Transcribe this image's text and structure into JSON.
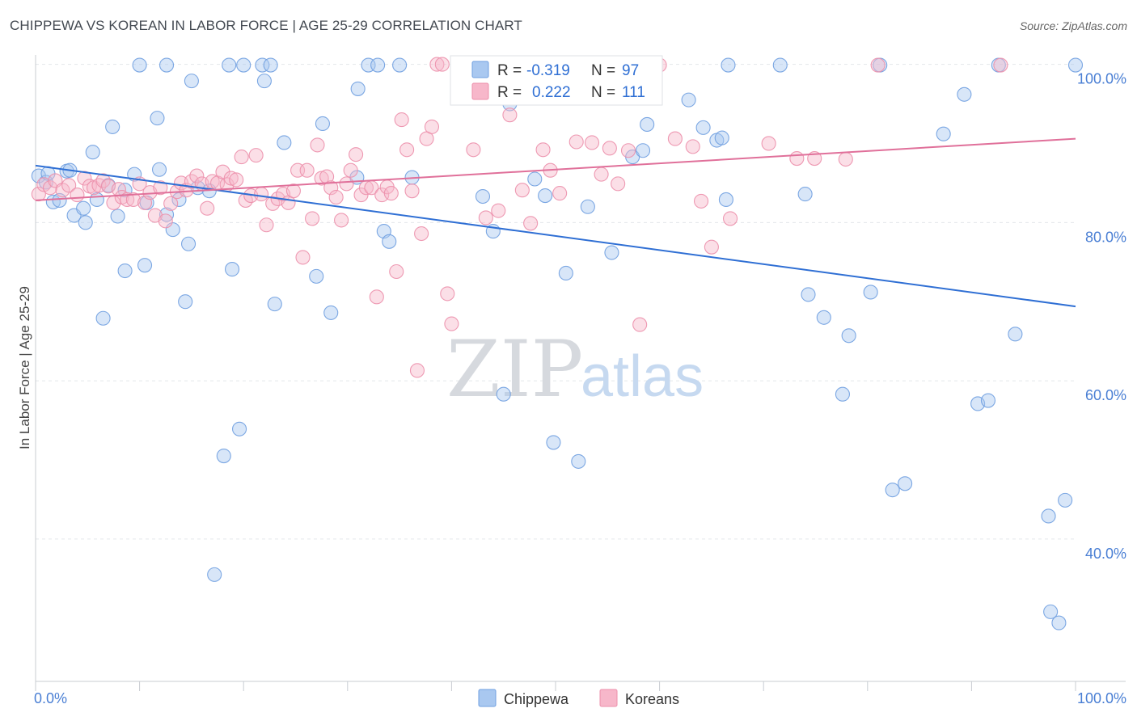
{
  "title": "CHIPPEWA VS KOREAN IN LABOR FORCE | AGE 25-29 CORRELATION CHART",
  "source": "Source: ZipAtlas.com",
  "watermark": {
    "zip": "ZIP",
    "atlas": "atlas"
  },
  "colors": {
    "chippewa_fill": "#a9c8f0",
    "chippewa_stroke": "#6f9fe0",
    "chippewa_line": "#2f6fd4",
    "korean_fill": "#f7b7ca",
    "korean_stroke": "#ec8fab",
    "korean_line": "#e0709a",
    "value_text": "#2f6fd4",
    "grid": "#e3e6ea"
  },
  "legend": {
    "r_label": "R =",
    "n_label": "N =",
    "rows": [
      {
        "r": "-0.319",
        "n": "97"
      },
      {
        "r": "0.222",
        "n": "111"
      }
    ]
  },
  "bottom_legend": [
    "Chippewa",
    "Koreans"
  ],
  "chart_data": {
    "type": "scatter",
    "xlabel": "",
    "ylabel": "In Labor Force | Age 25-29",
    "xlim": [
      0,
      100
    ],
    "ylim": [
      22,
      102
    ],
    "x_tick_labels": [
      {
        "value": 0,
        "label": "0.0%"
      },
      {
        "value": 100,
        "label": "100.0%"
      }
    ],
    "y_tick_labels": [
      {
        "value": 100,
        "label": "100.0%"
      },
      {
        "value": 80,
        "label": "80.0%"
      },
      {
        "value": 60,
        "label": "60.0%"
      },
      {
        "value": 40,
        "label": "40.0%"
      }
    ],
    "grid": true,
    "legend_position": "top-center",
    "series": [
      {
        "name": "Chippewa",
        "r": -0.319,
        "n": 97,
        "trend": {
          "x": [
            0,
            100
          ],
          "y": [
            87.2,
            69.4
          ]
        },
        "points": [
          [
            0.3,
            85.9
          ],
          [
            1.0,
            85.1
          ],
          [
            1.2,
            86.2
          ],
          [
            1.7,
            82.6
          ],
          [
            2.3,
            82.8
          ],
          [
            3.0,
            86.5
          ],
          [
            3.3,
            86.6
          ],
          [
            3.7,
            80.9
          ],
          [
            4.6,
            81.8
          ],
          [
            4.8,
            80.0
          ],
          [
            5.5,
            88.9
          ],
          [
            5.9,
            82.9
          ],
          [
            6.5,
            67.9
          ],
          [
            7.0,
            84.7
          ],
          [
            7.4,
            92.1
          ],
          [
            7.9,
            80.8
          ],
          [
            8.6,
            84.1
          ],
          [
            8.6,
            73.9
          ],
          [
            9.5,
            86.1
          ],
          [
            10.0,
            99.9
          ],
          [
            10.5,
            74.6
          ],
          [
            10.7,
            82.5
          ],
          [
            11.7,
            93.2
          ],
          [
            11.9,
            86.7
          ],
          [
            12.6,
            81.0
          ],
          [
            12.6,
            99.9
          ],
          [
            13.2,
            79.1
          ],
          [
            13.8,
            82.9
          ],
          [
            14.4,
            70.0
          ],
          [
            14.7,
            77.3
          ],
          [
            15.0,
            97.9
          ],
          [
            15.6,
            84.4
          ],
          [
            16.7,
            84.0
          ],
          [
            17.2,
            35.5
          ],
          [
            18.1,
            50.5
          ],
          [
            18.6,
            99.9
          ],
          [
            18.9,
            74.1
          ],
          [
            19.6,
            53.9
          ],
          [
            20.0,
            99.9
          ],
          [
            21.8,
            99.9
          ],
          [
            22.0,
            97.9
          ],
          [
            22.6,
            99.9
          ],
          [
            23.0,
            69.7
          ],
          [
            23.9,
            90.1
          ],
          [
            27.0,
            73.2
          ],
          [
            27.6,
            92.5
          ],
          [
            28.4,
            68.6
          ],
          [
            30.9,
            85.7
          ],
          [
            31.0,
            96.9
          ],
          [
            32.0,
            99.9
          ],
          [
            32.9,
            99.9
          ],
          [
            33.5,
            78.9
          ],
          [
            34.0,
            77.6
          ],
          [
            35.0,
            99.9
          ],
          [
            36.2,
            85.7
          ],
          [
            43.0,
            83.3
          ],
          [
            44.0,
            78.9
          ],
          [
            45.0,
            58.3
          ],
          [
            45.6,
            95.0
          ],
          [
            46.0,
            97.0
          ],
          [
            48.0,
            85.5
          ],
          [
            49.0,
            83.4
          ],
          [
            49.8,
            52.2
          ],
          [
            51.0,
            73.6
          ],
          [
            52.2,
            49.8
          ],
          [
            53.1,
            82.0
          ],
          [
            55.4,
            76.2
          ],
          [
            57.4,
            88.3
          ],
          [
            58.4,
            89.1
          ],
          [
            58.8,
            92.4
          ],
          [
            62.8,
            95.5
          ],
          [
            64.2,
            92.0
          ],
          [
            65.5,
            90.4
          ],
          [
            66.0,
            90.7
          ],
          [
            66.4,
            82.9
          ],
          [
            66.6,
            99.9
          ],
          [
            71.6,
            99.9
          ],
          [
            74.0,
            83.6
          ],
          [
            74.3,
            70.9
          ],
          [
            75.8,
            68.0
          ],
          [
            77.6,
            58.3
          ],
          [
            78.2,
            65.7
          ],
          [
            80.3,
            71.2
          ],
          [
            81.2,
            99.9
          ],
          [
            82.4,
            46.2
          ],
          [
            83.6,
            47.0
          ],
          [
            87.3,
            91.2
          ],
          [
            89.3,
            96.2
          ],
          [
            90.6,
            57.1
          ],
          [
            91.6,
            57.5
          ],
          [
            92.6,
            99.9
          ],
          [
            94.2,
            65.9
          ],
          [
            97.4,
            42.9
          ],
          [
            97.6,
            30.8
          ],
          [
            98.4,
            29.4
          ],
          [
            99.0,
            44.9
          ],
          [
            100.0,
            99.9
          ]
        ]
      },
      {
        "name": "Koreans",
        "r": 0.222,
        "n": 111,
        "trend": {
          "x": [
            0,
            100
          ],
          "y": [
            82.8,
            90.6
          ]
        },
        "points": [
          [
            0.3,
            83.6
          ],
          [
            0.8,
            84.8
          ],
          [
            1.4,
            84.4
          ],
          [
            1.9,
            85.3
          ],
          [
            2.6,
            84.1
          ],
          [
            3.2,
            84.7
          ],
          [
            4.0,
            83.5
          ],
          [
            4.7,
            85.6
          ],
          [
            5.2,
            84.6
          ],
          [
            5.6,
            84.4
          ],
          [
            6.1,
            84.7
          ],
          [
            6.5,
            85.3
          ],
          [
            7.0,
            84.6
          ],
          [
            7.5,
            82.5
          ],
          [
            8.0,
            84.2
          ],
          [
            8.3,
            83.2
          ],
          [
            8.8,
            82.9
          ],
          [
            9.4,
            82.9
          ],
          [
            10.0,
            84.9
          ],
          [
            10.5,
            82.5
          ],
          [
            11.0,
            83.8
          ],
          [
            11.5,
            80.9
          ],
          [
            12.0,
            84.4
          ],
          [
            12.5,
            80.2
          ],
          [
            13.0,
            82.4
          ],
          [
            13.6,
            83.9
          ],
          [
            14.0,
            85.0
          ],
          [
            14.5,
            84.1
          ],
          [
            15.0,
            85.2
          ],
          [
            15.5,
            85.9
          ],
          [
            16.0,
            84.9
          ],
          [
            16.5,
            81.8
          ],
          [
            17.0,
            85.2
          ],
          [
            17.5,
            85.0
          ],
          [
            18.0,
            86.4
          ],
          [
            18.4,
            84.8
          ],
          [
            18.8,
            85.6
          ],
          [
            19.3,
            85.4
          ],
          [
            19.8,
            88.3
          ],
          [
            20.2,
            82.8
          ],
          [
            20.7,
            83.4
          ],
          [
            21.2,
            88.5
          ],
          [
            21.7,
            83.6
          ],
          [
            22.2,
            79.7
          ],
          [
            22.8,
            82.4
          ],
          [
            23.3,
            83.0
          ],
          [
            23.8,
            83.6
          ],
          [
            24.3,
            82.5
          ],
          [
            24.8,
            84.0
          ],
          [
            25.2,
            86.6
          ],
          [
            25.7,
            75.6
          ],
          [
            26.1,
            86.6
          ],
          [
            26.6,
            80.5
          ],
          [
            27.1,
            89.8
          ],
          [
            27.5,
            85.6
          ],
          [
            28.0,
            85.8
          ],
          [
            28.4,
            84.4
          ],
          [
            28.9,
            83.2
          ],
          [
            29.4,
            80.3
          ],
          [
            29.9,
            84.9
          ],
          [
            30.3,
            86.6
          ],
          [
            30.8,
            88.6
          ],
          [
            31.3,
            83.5
          ],
          [
            31.8,
            84.4
          ],
          [
            32.3,
            84.4
          ],
          [
            32.8,
            70.6
          ],
          [
            33.3,
            83.5
          ],
          [
            33.8,
            84.5
          ],
          [
            34.2,
            83.7
          ],
          [
            34.7,
            73.8
          ],
          [
            35.2,
            93.0
          ],
          [
            35.7,
            89.2
          ],
          [
            36.2,
            84.0
          ],
          [
            36.7,
            61.3
          ],
          [
            37.1,
            78.6
          ],
          [
            37.6,
            90.6
          ],
          [
            38.1,
            92.1
          ],
          [
            38.6,
            100.0
          ],
          [
            39.1,
            100.0
          ],
          [
            39.6,
            71.0
          ],
          [
            40.0,
            67.2
          ],
          [
            41.3,
            99.9
          ],
          [
            42.1,
            89.2
          ],
          [
            43.3,
            80.6
          ],
          [
            44.5,
            81.5
          ],
          [
            45.6,
            93.6
          ],
          [
            46.8,
            84.1
          ],
          [
            47.6,
            79.9
          ],
          [
            48.8,
            89.2
          ],
          [
            49.5,
            86.6
          ],
          [
            50.4,
            83.7
          ],
          [
            51.3,
            99.9
          ],
          [
            52.0,
            90.2
          ],
          [
            53.5,
            90.1
          ],
          [
            54.4,
            86.1
          ],
          [
            55.2,
            89.4
          ],
          [
            56.0,
            84.9
          ],
          [
            57.0,
            89.1
          ],
          [
            58.1,
            67.1
          ],
          [
            60.0,
            99.9
          ],
          [
            61.5,
            90.6
          ],
          [
            63.2,
            89.6
          ],
          [
            64.0,
            82.7
          ],
          [
            65.0,
            76.9
          ],
          [
            66.8,
            80.5
          ],
          [
            70.5,
            90.0
          ],
          [
            73.2,
            88.1
          ],
          [
            74.9,
            88.1
          ],
          [
            77.9,
            88.0
          ],
          [
            81.0,
            99.9
          ],
          [
            92.8,
            99.9
          ]
        ]
      }
    ]
  }
}
